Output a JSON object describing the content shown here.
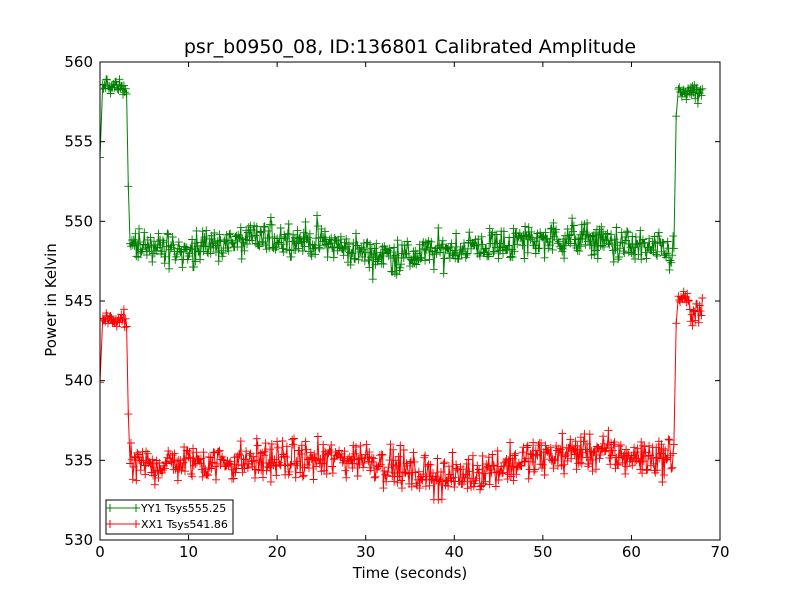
{
  "chart_data": {
    "type": "line",
    "title": "psr_b0950_08, ID:136801 Calibrated Amplitude",
    "xlabel": "Time (seconds)",
    "ylabel": "Power in Kelvin",
    "xlim": [
      0,
      70
    ],
    "ylim": [
      530,
      560
    ],
    "xticks": [
      0,
      10,
      20,
      30,
      40,
      50,
      60,
      70
    ],
    "yticks": [
      530,
      535,
      540,
      545,
      550,
      555,
      560
    ],
    "grid": false,
    "legend_position": "lower-left",
    "marker": "+",
    "sample_interval_s": 0.1,
    "series": [
      {
        "name": "YY1 Tsys555.25",
        "color": "#008000",
        "segments": [
          {
            "x_start": 0.0,
            "x_end": 0.3,
            "values": [
              554.0,
              558.6
            ]
          },
          {
            "x_start": 0.3,
            "x_end": 3.0,
            "level": 558.5,
            "noise": 0.3
          },
          {
            "x_start": 3.0,
            "x_end": 3.4,
            "values": [
              558.0,
              552.2,
              548.6
            ]
          },
          {
            "x_start": 3.4,
            "x_end": 64.8,
            "level_points": [
              [
                3.4,
                548.4
              ],
              [
                10,
                548.3
              ],
              [
                20,
                549.0
              ],
              [
                25,
                548.7
              ],
              [
                30,
                548.0
              ],
              [
                35,
                547.8
              ],
              [
                40,
                548.3
              ],
              [
                45,
                548.5
              ],
              [
                50,
                548.9
              ],
              [
                55,
                548.9
              ],
              [
                60,
                548.4
              ],
              [
                64.8,
                548.0
              ]
            ],
            "noise": 0.55
          },
          {
            "x_start": 64.8,
            "x_end": 65.3,
            "values": [
              548.3,
              556.6,
              558.3
            ]
          },
          {
            "x_start": 65.3,
            "x_end": 68.0,
            "level": 558.0,
            "noise": 0.35
          }
        ]
      },
      {
        "name": "XX1 Tsys541.86",
        "color": "#ff0000",
        "segments": [
          {
            "x_start": 0.0,
            "x_end": 0.3,
            "values": [
              539.9,
              543.9
            ]
          },
          {
            "x_start": 0.3,
            "x_end": 3.0,
            "level": 543.8,
            "noise": 0.25
          },
          {
            "x_start": 3.0,
            "x_end": 3.4,
            "values": [
              543.4,
              537.9,
              534.8
            ]
          },
          {
            "x_start": 3.4,
            "x_end": 64.8,
            "level_points": [
              [
                3.4,
                534.6
              ],
              [
                10,
                534.9
              ],
              [
                15,
                534.9
              ],
              [
                20,
                535.0
              ],
              [
                25,
                535.0
              ],
              [
                30,
                535.2
              ],
              [
                35,
                534.2
              ],
              [
                40,
                533.9
              ],
              [
                45,
                534.6
              ],
              [
                50,
                535.2
              ],
              [
                55,
                535.6
              ],
              [
                60,
                535.2
              ],
              [
                64.8,
                535.2
              ]
            ],
            "noise": 0.6
          },
          {
            "x_start": 64.8,
            "x_end": 65.3,
            "values": [
              536.0,
              543.6,
              545.3
            ]
          },
          {
            "x_start": 65.3,
            "x_end": 66.5,
            "level": 545.2,
            "noise": 0.2
          },
          {
            "x_start": 66.5,
            "x_end": 68.0,
            "level": 544.0,
            "noise": 0.6
          }
        ]
      }
    ]
  }
}
